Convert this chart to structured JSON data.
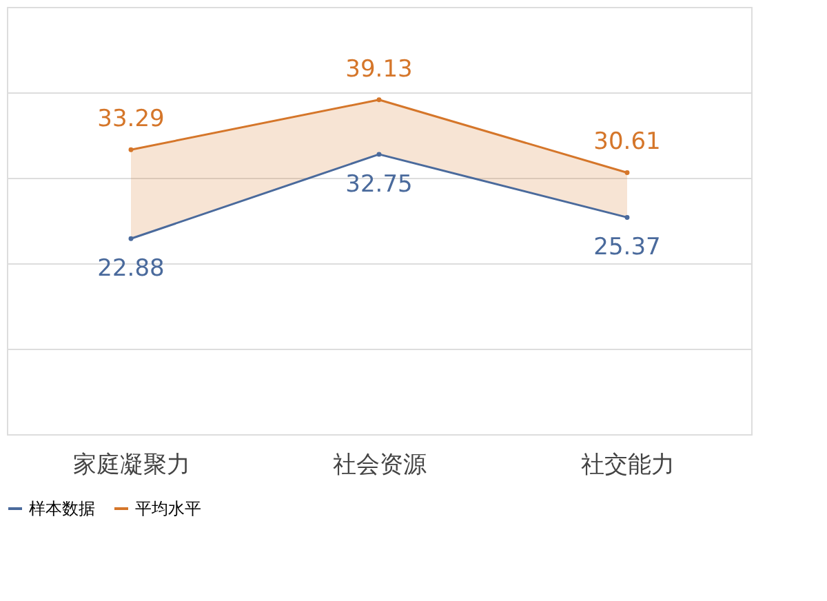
{
  "chart_data": {
    "type": "line",
    "categories": [
      "家庭凝聚力",
      "社会资源",
      "社交能力"
    ],
    "series": [
      {
        "name": "样本数据",
        "color": "#4a6a9c",
        "values": [
          22.88,
          32.75,
          25.37
        ]
      },
      {
        "name": "平均水平",
        "color": "#d5762a",
        "values": [
          33.29,
          39.13,
          30.61
        ],
        "lower": [
          22.88,
          32.75,
          25.37
        ],
        "upper": [
          33.29,
          39.13,
          30.61
        ]
      }
    ],
    "ylim": [
      0,
      50
    ],
    "yticks": [
      {
        "value": 0,
        "label": null
      },
      {
        "value": 10,
        "label": null
      },
      {
        "value": 20,
        "label": null
      },
      {
        "value": 30,
        "label": null
      },
      {
        "value": 40,
        "label": null
      },
      {
        "value": 50,
        "label": null
      }
    ],
    "tick_labels": "x",
    "grid": "y",
    "legend": "bottom",
    "marker": "circle",
    "line_style": "solid",
    "data_labels": true
  }
}
